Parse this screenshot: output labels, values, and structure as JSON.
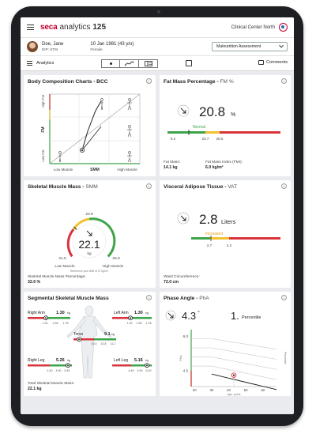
{
  "topbar": {
    "brand": "seca",
    "app": "analytics",
    "version": "125",
    "clinic": "Clinical Center North"
  },
  "patient": {
    "name": "Doe, Jane",
    "id": "IDP: STM",
    "dob": "10 Jan 1981 (43 y/o)",
    "sex": "Female",
    "assessment": "Malnutrition Assessment"
  },
  "toolbar": {
    "section": "Analytics",
    "comments": "Comments"
  },
  "bcc": {
    "title": "Body Composition Charts - BCC",
    "y_axis": [
      "High Fat",
      "FM",
      "Low Fat"
    ],
    "x_axis": [
      "Low Muscle",
      "SMM",
      "High Muscle"
    ]
  },
  "fm": {
    "title": "Fat Mass Percentage",
    "abbr": "FM %",
    "value": "20.8",
    "unit": "%",
    "status": "Normal",
    "ticks": [
      "9.2",
      "23.7",
      "28.5"
    ],
    "fat_mass_label": "Fat Mass:",
    "fat_mass_value": "14.1 kg",
    "fmi_label": "Fat Mass Index (FMI):",
    "fmi_value": "6.0 kg/m²"
  },
  "smm": {
    "title": "Skeletal Muscle Mass",
    "abbr": "SMM",
    "value": "22.1",
    "unit": "kg",
    "top": "23.9",
    "left": "21.9",
    "right": "26.9",
    "low_label": "Low Muscle",
    "high_label": "High Muscle",
    "ref_note": "Reference your BMI of 27 kg/m²",
    "footer_label": "Skeletal Muscle Mass Percentage:",
    "footer_value": "32.6 %"
  },
  "vat": {
    "title": "Visceral Adipose Tissue",
    "abbr": "VAT",
    "value": "2.8",
    "unit": "Liters",
    "status": "Increased",
    "ticks": [
      "2.7",
      "4.2"
    ],
    "footer_label": "Waist Circumference:",
    "footer_value": "72.0 cm"
  },
  "seg": {
    "title": "Segmental Skeletal Muscle Mass",
    "right_arm": {
      "label": "Right Arm",
      "value": "1.30",
      "unit": "kg",
      "ticks": [
        "1.32",
        "1.55",
        "1.78"
      ]
    },
    "left_arm": {
      "label": "Left Arm",
      "value": "1.30",
      "unit": "kg",
      "ticks": [
        "1.32",
        "1.55",
        "1.78"
      ]
    },
    "torso": {
      "label": "Torso",
      "value": "9.1",
      "unit": "kg",
      "ticks": [
        "10.0",
        "10.8",
        "11.2"
      ]
    },
    "right_leg": {
      "label": "Right Leg",
      "value": "5.26",
      "unit": "kg",
      "ticks": [
        "4.40",
        "4.90",
        "5.40"
      ]
    },
    "left_leg": {
      "label": "Left Leg",
      "value": "5.16",
      "unit": "kg",
      "ticks": [
        "4.40",
        "4.90",
        "5.40"
      ]
    },
    "footer_label": "Total Skeletal Muscle Mass:",
    "footer_value": "22.1 kg"
  },
  "pha": {
    "title": "Phase Angle",
    "abbr": "PhA",
    "value": "4.3",
    "unit": "°",
    "percentile": "1.",
    "percentile_label": "Percentile",
    "y_ticks": [
      "6.0",
      "4.5"
    ],
    "y_label": "PhA",
    "x_ticks": [
      "20",
      "30",
      "40",
      "50",
      "60"
    ],
    "x_label": "Age, years",
    "side_label": "Percentile"
  },
  "chart_data": {
    "type": "scatter",
    "title": "Phase Angle",
    "x": [
      43
    ],
    "y": [
      4.3
    ],
    "xlabel": "Age, years",
    "ylabel": "PhA",
    "xlim": [
      18,
      68
    ],
    "ylim": [
      3.8,
      6.3
    ]
  },
  "colors": {
    "green": "#3ea44a",
    "yellow": "#f2c230",
    "red": "#d9343b",
    "brand": "#c3002f"
  }
}
